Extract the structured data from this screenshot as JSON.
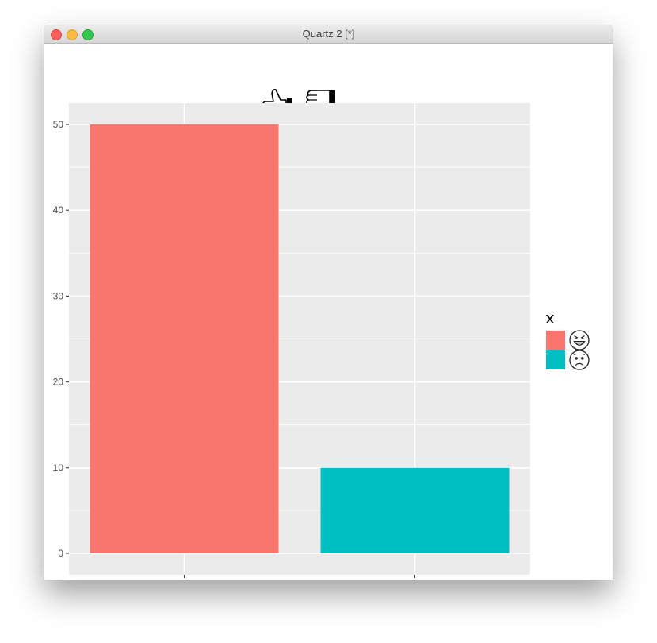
{
  "window": {
    "title": "Quartz 2 [*]",
    "buttons": [
      "close",
      "minimize",
      "zoom"
    ]
  },
  "colors": {
    "panel_bg": "#ebebeb",
    "grid": "#ffffff",
    "series1": "#f8766d",
    "series2": "#00bfc4"
  },
  "chart_data": {
    "type": "bar",
    "title": "👍👎",
    "title_icons": [
      "thumbs-up-icon",
      "thumbs-down-icon"
    ],
    "categories": [
      "😆",
      "😟"
    ],
    "category_icons": [
      "laughing-face-icon",
      "worried-face-icon"
    ],
    "values": [
      50,
      10
    ],
    "colors": [
      "#f8766d",
      "#00bfc4"
    ],
    "xlabel": "",
    "ylabel": "",
    "ylim": [
      0,
      52.5
    ],
    "yticks": [
      0,
      10,
      20,
      30,
      40,
      50
    ],
    "grid": true,
    "legend": {
      "title": "x",
      "position": "right",
      "entries": [
        "😆",
        "😟"
      ]
    }
  }
}
